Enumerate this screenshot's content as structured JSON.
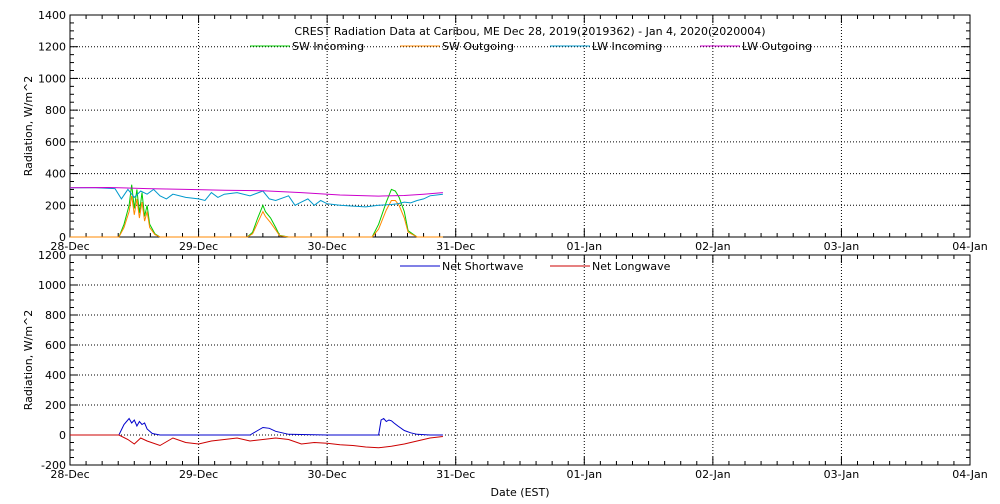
{
  "title": "CREST Radiation Data at Caribou, ME   Dec 28, 2019(2019362) - Jan  4, 2020(2020004)",
  "xlabel": "Date (EST)",
  "colors": {
    "sw_in": "#00cc00",
    "sw_out": "#ff8800",
    "lw_in": "#0099cc",
    "lw_out": "#cc00cc",
    "net_sw": "#0000cc",
    "net_lw": "#cc0000"
  },
  "chart_data": [
    {
      "type": "line",
      "ylabel": "Radiation, W/m^2",
      "ylim": [
        0,
        1400
      ],
      "yticks": [
        "0",
        "200",
        "400",
        "600",
        "800",
        "1000",
        "1200",
        "1400"
      ],
      "xlim": [
        0,
        7
      ],
      "xticks": [
        "28-Dec",
        "29-Dec",
        "30-Dec",
        "31-Dec",
        "01-Jan",
        "02-Jan",
        "03-Jan",
        "04-Jan"
      ],
      "grid": true,
      "legend": "top",
      "series": [
        {
          "name": "SW Incoming",
          "color_key": "sw_in",
          "x": [
            0.0,
            0.38,
            0.42,
            0.46,
            0.48,
            0.5,
            0.52,
            0.54,
            0.56,
            0.58,
            0.6,
            0.62,
            0.66,
            0.7,
            1.0,
            1.38,
            1.42,
            1.46,
            1.5,
            1.52,
            1.56,
            1.6,
            1.63,
            1.7,
            2.0,
            2.35,
            2.4,
            2.46,
            2.5,
            2.53,
            2.56,
            2.6,
            2.63,
            2.7,
            2.9
          ],
          "y": [
            0,
            0,
            80,
            200,
            330,
            180,
            300,
            150,
            280,
            130,
            200,
            80,
            20,
            0,
            0,
            0,
            30,
            120,
            200,
            160,
            120,
            60,
            10,
            0,
            0,
            0,
            80,
            220,
            300,
            290,
            250,
            160,
            40,
            0,
            0
          ]
        },
        {
          "name": "SW Outgoing",
          "color_key": "sw_out",
          "x": [
            0.0,
            0.38,
            0.42,
            0.46,
            0.48,
            0.5,
            0.52,
            0.54,
            0.56,
            0.58,
            0.6,
            0.62,
            0.66,
            0.7,
            1.0,
            1.38,
            1.42,
            1.46,
            1.5,
            1.52,
            1.56,
            1.6,
            1.63,
            1.7,
            2.0,
            2.35,
            2.4,
            2.46,
            2.5,
            2.53,
            2.56,
            2.6,
            2.63,
            2.7,
            2.9
          ],
          "y": [
            0,
            0,
            60,
            160,
            260,
            140,
            240,
            120,
            220,
            100,
            160,
            60,
            15,
            0,
            0,
            0,
            20,
            90,
            160,
            130,
            90,
            45,
            8,
            0,
            0,
            0,
            50,
            170,
            230,
            230,
            200,
            120,
            30,
            0,
            0
          ]
        },
        {
          "name": "LW Incoming",
          "color_key": "lw_in",
          "x": [
            0.0,
            0.2,
            0.35,
            0.4,
            0.45,
            0.5,
            0.55,
            0.6,
            0.65,
            0.7,
            0.75,
            0.8,
            0.9,
            1.0,
            1.05,
            1.1,
            1.15,
            1.2,
            1.3,
            1.4,
            1.5,
            1.55,
            1.6,
            1.7,
            1.75,
            1.8,
            1.85,
            1.9,
            1.95,
            2.0,
            2.05,
            2.1,
            2.2,
            2.3,
            2.4,
            2.5,
            2.55,
            2.6,
            2.65,
            2.7,
            2.75,
            2.8,
            2.9
          ],
          "y": [
            310,
            310,
            305,
            240,
            300,
            250,
            290,
            270,
            300,
            260,
            240,
            270,
            250,
            240,
            230,
            280,
            250,
            270,
            280,
            260,
            290,
            240,
            230,
            260,
            200,
            220,
            240,
            200,
            230,
            210,
            205,
            200,
            195,
            190,
            200,
            205,
            210,
            220,
            215,
            230,
            240,
            260,
            270
          ]
        },
        {
          "name": "LW Outgoing",
          "color_key": "lw_out",
          "x": [
            0.0,
            0.3,
            0.6,
            0.9,
            1.2,
            1.5,
            1.8,
            2.1,
            2.4,
            2.6,
            2.75,
            2.9
          ],
          "y": [
            310,
            312,
            305,
            300,
            295,
            292,
            280,
            265,
            258,
            262,
            270,
            280
          ]
        }
      ]
    },
    {
      "type": "line",
      "ylabel": "Radiation, W/m^2",
      "ylim": [
        -200,
        1200
      ],
      "yticks": [
        "-200",
        "0",
        "200",
        "400",
        "600",
        "800",
        "1000",
        "1200"
      ],
      "xlim": [
        0,
        7
      ],
      "xticks": [
        "28-Dec",
        "29-Dec",
        "30-Dec",
        "31-Dec",
        "01-Jan",
        "02-Jan",
        "03-Jan",
        "04-Jan"
      ],
      "grid": true,
      "legend": "top",
      "series": [
        {
          "name": "Net Shortwave",
          "color_key": "net_sw",
          "x": [
            0.0,
            0.38,
            0.42,
            0.46,
            0.48,
            0.5,
            0.52,
            0.54,
            0.56,
            0.58,
            0.6,
            0.64,
            0.7,
            1.0,
            1.4,
            1.46,
            1.5,
            1.55,
            1.6,
            1.7,
            2.0,
            2.4,
            2.42,
            2.44,
            2.46,
            2.48,
            2.5,
            2.52,
            2.55,
            2.6,
            2.65,
            2.7,
            2.8,
            2.9
          ],
          "y": [
            0,
            0,
            70,
            110,
            80,
            100,
            60,
            90,
            70,
            80,
            40,
            10,
            0,
            0,
            0,
            30,
            50,
            45,
            25,
            5,
            0,
            0,
            100,
            110,
            90,
            100,
            95,
            80,
            60,
            30,
            15,
            5,
            0,
            0
          ]
        },
        {
          "name": "Net Longwave",
          "color_key": "net_lw",
          "x": [
            0.0,
            0.38,
            0.45,
            0.5,
            0.55,
            0.6,
            0.7,
            0.8,
            0.9,
            1.0,
            1.1,
            1.2,
            1.3,
            1.4,
            1.5,
            1.6,
            1.7,
            1.8,
            1.9,
            2.0,
            2.1,
            2.2,
            2.3,
            2.4,
            2.5,
            2.6,
            2.7,
            2.8,
            2.9
          ],
          "y": [
            0,
            0,
            -30,
            -60,
            -20,
            -40,
            -70,
            -20,
            -50,
            -60,
            -40,
            -30,
            -20,
            -40,
            -30,
            -20,
            -30,
            -60,
            -50,
            -55,
            -65,
            -70,
            -80,
            -85,
            -75,
            -60,
            -40,
            -20,
            -10
          ]
        }
      ]
    }
  ]
}
